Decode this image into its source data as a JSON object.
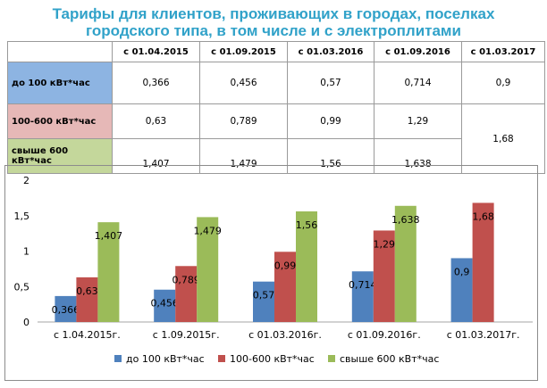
{
  "title_line1": "Тарифы для клиентов, проживающих в городах, поселках",
  "title_line2": "городского типа, в том числе и с электроплитами",
  "table": {
    "headers": [
      "с 01.04.2015",
      "с 01.09.2015",
      "с 01.03.2016",
      "с 01.09.2016",
      "с 01.03.2017"
    ],
    "rows": [
      {
        "label": "до 100 кВт*час",
        "color": "#8db4e2",
        "values": [
          "0,366",
          "0,456",
          "0,57",
          "0,714",
          "0,9"
        ]
      },
      {
        "label": "100-600 кВт*час",
        "color": "#e6b8b7",
        "values": [
          "0,63",
          "0,789",
          "0,99",
          "1,29"
        ]
      },
      {
        "label_line1": "свыше 600",
        "label_line2": "кВт*час",
        "color": "#c4d79b",
        "values": [
          "1,407",
          "1,479",
          "1,56",
          "1,638"
        ]
      }
    ],
    "merged_value": "1,68"
  },
  "chart_data": {
    "type": "bar",
    "categories": [
      "с 1.04.2015г.",
      "с 1.09.2015г.",
      "с 01.03.2016г.",
      "с 01.09.2016г.",
      "с 01.03.2017г."
    ],
    "series": [
      {
        "name": "до 100 кВт*час",
        "color": "#4f81bd",
        "values": [
          0.366,
          0.456,
          0.57,
          0.714,
          0.9
        ],
        "labels": [
          "0,366",
          "0,456",
          "0,57",
          "0,714",
          "0,9"
        ]
      },
      {
        "name": "100-600 кВт*час",
        "color": "#c0504d",
        "values": [
          0.63,
          0.789,
          0.99,
          1.29,
          1.68
        ],
        "labels": [
          "0,63",
          "0,789",
          "0,99",
          "1,29",
          "1,68"
        ]
      },
      {
        "name": "свыше 600 кВт*час",
        "color": "#9bbb59",
        "values": [
          1.407,
          1.479,
          1.56,
          1.638,
          null
        ],
        "labels": [
          "1,407",
          "1,479",
          "1,56",
          "1,638",
          ""
        ]
      }
    ],
    "ylim": [
      0,
      2
    ],
    "yticks": [
      0,
      0.5,
      1,
      1.5,
      2
    ],
    "ytick_labels": [
      "0",
      "0,5",
      "1",
      "1,5",
      "2"
    ],
    "legend_position": "bottom",
    "grid": false
  }
}
